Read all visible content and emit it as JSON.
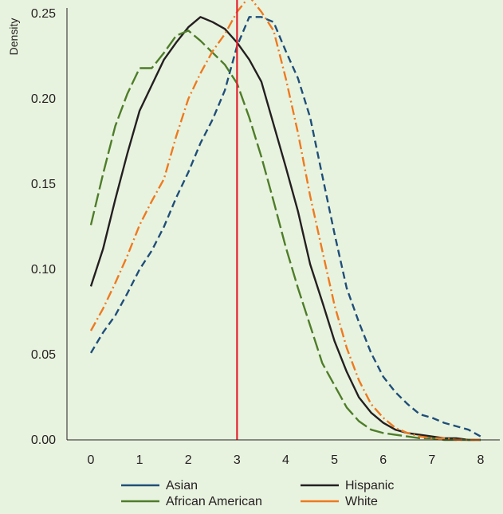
{
  "chart_data": {
    "type": "line",
    "title": "",
    "xlabel": "",
    "ylabel": "Density",
    "xlim": [
      -0.45,
      8.45
    ],
    "ylim": [
      0,
      0.25
    ],
    "x_ticks": [
      "0",
      "1",
      "2",
      "3",
      "4",
      "5",
      "6",
      "7",
      "8"
    ],
    "y_ticks": [
      "0.00",
      "0.05",
      "0.10",
      "0.15",
      "0.20",
      "0.25"
    ],
    "reference_line": {
      "x": 3,
      "color": "#e5202e"
    },
    "grid": false,
    "legend_position": "bottom",
    "series": [
      {
        "name": "Asian",
        "color": "#1f4e79",
        "dash": "9 5",
        "x": [
          0,
          0.25,
          0.5,
          0.75,
          1,
          1.25,
          1.5,
          1.75,
          2,
          2.25,
          2.5,
          2.75,
          3,
          3.25,
          3.5,
          3.75,
          4,
          4.25,
          4.5,
          4.75,
          5,
          5.25,
          5.5,
          5.75,
          6,
          6.25,
          6.5,
          6.75,
          7,
          7.25,
          7.5,
          7.75,
          8
        ],
        "y": [
          0.051,
          0.063,
          0.073,
          0.086,
          0.1,
          0.111,
          0.125,
          0.142,
          0.157,
          0.174,
          0.188,
          0.205,
          0.231,
          0.248,
          0.248,
          0.245,
          0.228,
          0.212,
          0.189,
          0.155,
          0.121,
          0.089,
          0.069,
          0.051,
          0.037,
          0.028,
          0.021,
          0.015,
          0.013,
          0.01,
          0.008,
          0.006,
          0.002
        ]
      },
      {
        "name": "Hispanic",
        "color": "#231f20",
        "dash": "",
        "x": [
          0,
          0.25,
          0.5,
          0.75,
          1,
          1.25,
          1.5,
          1.75,
          2,
          2.25,
          2.5,
          2.75,
          3,
          3.25,
          3.5,
          3.75,
          4,
          4.25,
          4.5,
          4.75,
          5,
          5.25,
          5.5,
          5.75,
          6,
          6.25,
          6.5,
          6.75,
          7,
          7.25,
          7.5,
          7.75,
          8
        ],
        "y": [
          0.09,
          0.112,
          0.141,
          0.168,
          0.193,
          0.208,
          0.223,
          0.233,
          0.242,
          0.248,
          0.245,
          0.241,
          0.233,
          0.223,
          0.21,
          0.185,
          0.16,
          0.134,
          0.103,
          0.081,
          0.058,
          0.04,
          0.025,
          0.016,
          0.01,
          0.006,
          0.004,
          0.003,
          0.002,
          0.001,
          0.001,
          0.0,
          0.0
        ]
      },
      {
        "name": "African American",
        "color": "#4e7d2a",
        "dash": "18 5",
        "x": [
          0,
          0.25,
          0.5,
          0.75,
          1,
          1.25,
          1.5,
          1.75,
          2,
          2.25,
          2.5,
          2.75,
          3,
          3.25,
          3.5,
          3.75,
          4,
          4.25,
          4.5,
          4.75,
          5,
          5.25,
          5.5,
          5.75,
          6,
          6.25,
          6.5,
          6.75,
          7,
          7.25,
          7.5,
          7.75,
          8
        ],
        "y": [
          0.126,
          0.156,
          0.184,
          0.203,
          0.218,
          0.218,
          0.227,
          0.237,
          0.24,
          0.234,
          0.227,
          0.22,
          0.209,
          0.189,
          0.166,
          0.14,
          0.113,
          0.089,
          0.067,
          0.045,
          0.032,
          0.019,
          0.011,
          0.006,
          0.004,
          0.003,
          0.002,
          0.001,
          0.001,
          0.0,
          0.0,
          0.0,
          0.0
        ]
      },
      {
        "name": "White",
        "color": "#ee7a1f",
        "dash": "12 4 2 4",
        "x": [
          0,
          0.25,
          0.5,
          0.75,
          1,
          1.25,
          1.5,
          1.75,
          2,
          2.25,
          2.5,
          2.75,
          3,
          3.25,
          3.5,
          3.75,
          4,
          4.25,
          4.5,
          4.75,
          5,
          5.25,
          5.5,
          5.75,
          6,
          6.25,
          6.5,
          6.75,
          7,
          7.25,
          7.5,
          7.75,
          8
        ],
        "y": [
          0.064,
          0.077,
          0.092,
          0.108,
          0.126,
          0.14,
          0.153,
          0.178,
          0.2,
          0.215,
          0.228,
          0.238,
          0.251,
          0.26,
          0.251,
          0.24,
          0.212,
          0.18,
          0.143,
          0.111,
          0.079,
          0.054,
          0.035,
          0.021,
          0.013,
          0.007,
          0.004,
          0.002,
          0.001,
          0.001,
          0.0,
          0.0,
          0.0
        ]
      }
    ]
  }
}
